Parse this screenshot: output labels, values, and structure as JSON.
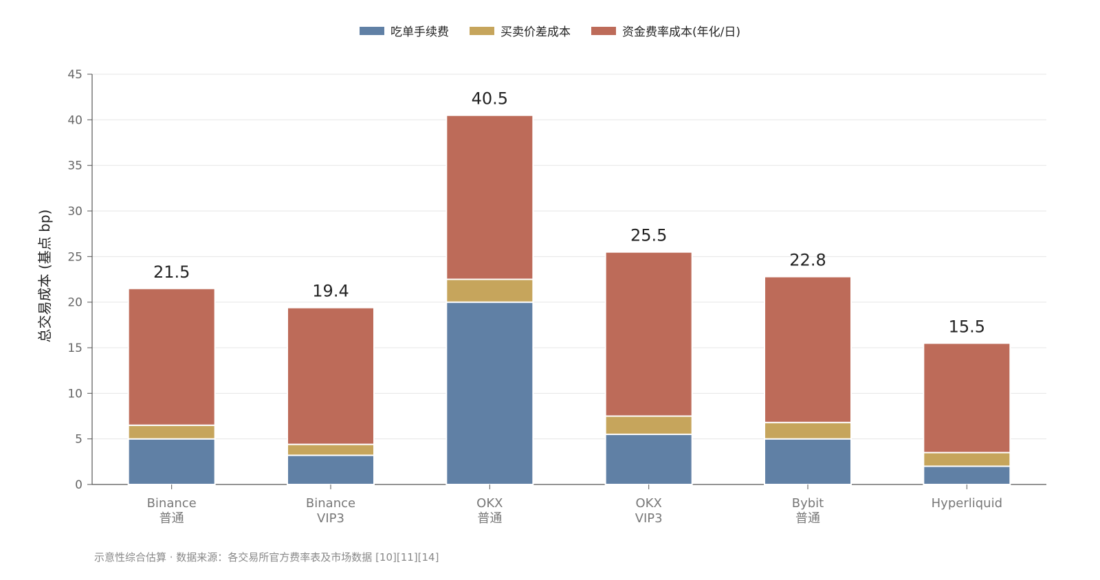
{
  "chart_data": {
    "type": "bar",
    "stacked": true,
    "categories": [
      {
        "line1": "Binance",
        "line2": "普通"
      },
      {
        "line1": "Binance",
        "line2": "VIP3"
      },
      {
        "line1": "OKX",
        "line2": "普通"
      },
      {
        "line1": "OKX",
        "line2": "VIP3"
      },
      {
        "line1": "Bybit",
        "line2": "普通"
      },
      {
        "line1": "Hyperliquid",
        "line2": ""
      }
    ],
    "series": [
      {
        "name": "吃单手续费",
        "color": "#6080a5",
        "values": [
          5.0,
          3.2,
          20.0,
          5.5,
          5.0,
          2.0
        ]
      },
      {
        "name": "买卖价差成本",
        "color": "#c6a55c",
        "values": [
          1.5,
          1.2,
          2.5,
          2.0,
          1.8,
          1.5
        ]
      },
      {
        "name": "资金费率成本(年化/日)",
        "color": "#bd6b59",
        "values": [
          15.0,
          15.0,
          18.0,
          18.0,
          16.0,
          12.0
        ]
      }
    ],
    "totals": [
      "21.5",
      "19.4",
      "40.5",
      "25.5",
      "22.8",
      "15.5"
    ],
    "ylabel": "总交易成本 (基点 bp)",
    "ylim": [
      0,
      45
    ],
    "yticks": [
      0,
      5,
      10,
      15,
      20,
      25,
      30,
      35,
      40,
      45
    ],
    "grid": true,
    "legend_position": "top-center"
  },
  "footnote": "示意性综合估算 · 数据来源：各交易所官方费率表及市场数据 [10][11][14]"
}
